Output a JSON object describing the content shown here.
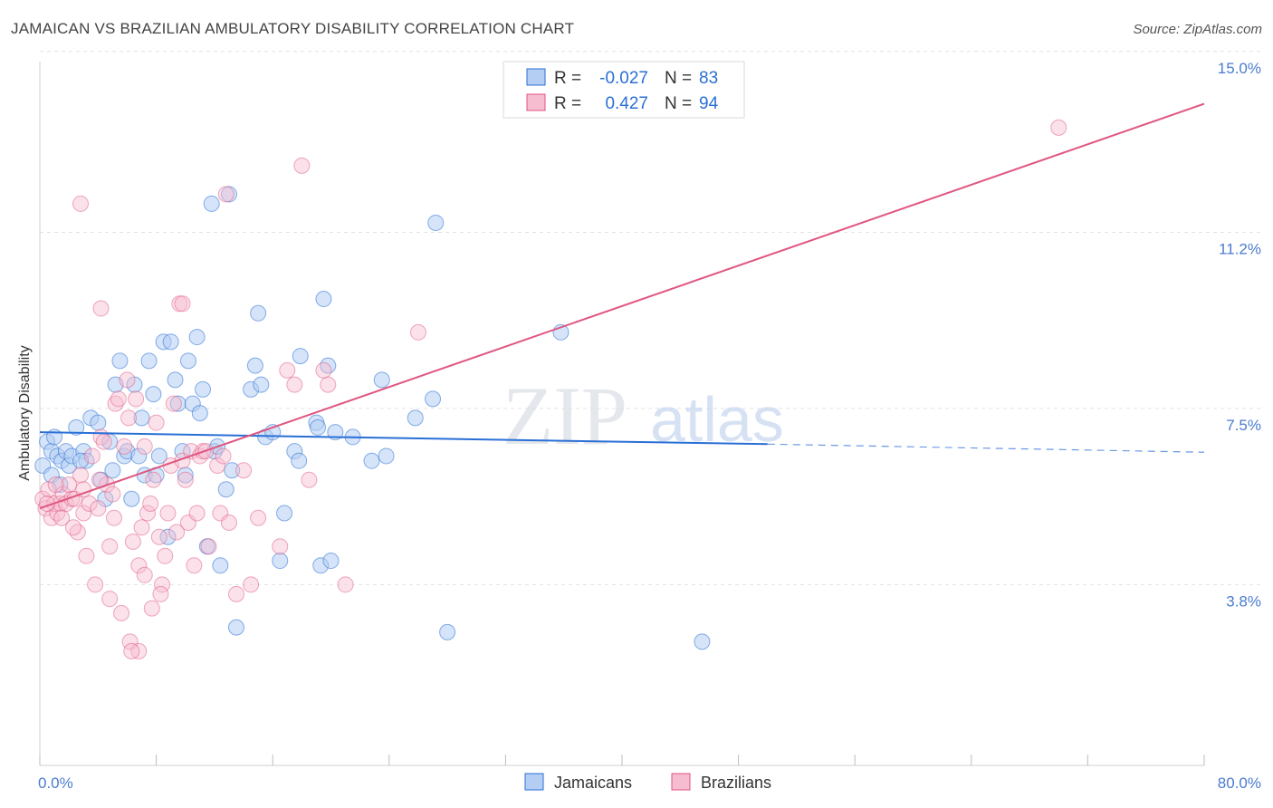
{
  "header": {
    "title": "JAMAICAN VS BRAZILIAN AMBULATORY DISABILITY CORRELATION CHART",
    "source": "Source: ZipAtlas.com"
  },
  "watermark": {
    "zip": "ZIP",
    "atlas": "atlas"
  },
  "colors": {
    "jamaicans": "#2a6fd6",
    "jamaicans_fill": "#b3cdf3",
    "brazilians": "#e0567f",
    "brazilians_fill": "#f6bcd0",
    "tick": "#4a7bd0"
  },
  "legend": {
    "jamaicans": {
      "r_label": "R = ",
      "r_value": "-0.027",
      "n_label": "N = ",
      "n_value": "83"
    },
    "brazilians": {
      "r_label": "R = ",
      "r_value": "0.427",
      "n_label": "N = ",
      "n_value": "94"
    }
  },
  "bottom_legend": {
    "jamaicans": "Jamaicans",
    "brazilians": "Brazilians"
  },
  "chart_data": {
    "type": "scatter",
    "title": "JAMAICAN VS BRAZILIAN AMBULATORY DISABILITY CORRELATION CHART",
    "xlabel": "",
    "ylabel": "Ambulatory Disability",
    "xlim": [
      0,
      80
    ],
    "ylim": [
      0,
      15.7
    ],
    "x_tick_labels": [
      "0.0%",
      "80.0%"
    ],
    "y_ticks": [
      3.8,
      7.5,
      11.2,
      15.0
    ],
    "y_tick_labels": [
      "3.8%",
      "7.5%",
      "11.2%",
      "15.0%"
    ],
    "series": [
      {
        "name": "Jamaicans",
        "r": -0.027,
        "n": 83,
        "trend": {
          "x_start": 0,
          "y_start": 7.0,
          "x_end": 50,
          "y_end": 6.75,
          "dashed_x_end": 80,
          "dashed_y_end": 6.58
        },
        "points": [
          [
            0.2,
            6.3
          ],
          [
            0.5,
            6.8
          ],
          [
            0.8,
            6.6
          ],
          [
            1.0,
            6.9
          ],
          [
            1.2,
            6.5
          ],
          [
            1.5,
            6.4
          ],
          [
            1.8,
            6.6
          ],
          [
            2.0,
            6.3
          ],
          [
            2.2,
            6.5
          ],
          [
            2.5,
            7.1
          ],
          [
            3.0,
            6.6
          ],
          [
            3.2,
            6.4
          ],
          [
            3.5,
            7.3
          ],
          [
            4.0,
            7.2
          ],
          [
            4.2,
            6.0
          ],
          [
            4.5,
            5.6
          ],
          [
            4.8,
            6.8
          ],
          [
            5.0,
            6.2
          ],
          [
            5.2,
            8.0
          ],
          [
            5.5,
            8.5
          ],
          [
            5.8,
            6.5
          ],
          [
            6.0,
            6.6
          ],
          [
            6.3,
            5.6
          ],
          [
            6.5,
            8.0
          ],
          [
            6.8,
            6.5
          ],
          [
            7.0,
            7.3
          ],
          [
            7.2,
            6.1
          ],
          [
            7.5,
            8.5
          ],
          [
            7.8,
            7.8
          ],
          [
            8.0,
            6.1
          ],
          [
            8.2,
            6.5
          ],
          [
            8.5,
            8.9
          ],
          [
            8.8,
            4.8
          ],
          [
            9.0,
            8.9
          ],
          [
            9.3,
            8.1
          ],
          [
            9.5,
            7.6
          ],
          [
            9.8,
            6.6
          ],
          [
            10.0,
            6.1
          ],
          [
            10.2,
            8.5
          ],
          [
            10.5,
            7.6
          ],
          [
            10.8,
            9.0
          ],
          [
            11.0,
            7.4
          ],
          [
            11.2,
            7.9
          ],
          [
            11.5,
            4.6
          ],
          [
            11.8,
            11.8
          ],
          [
            12.0,
            6.6
          ],
          [
            12.2,
            6.7
          ],
          [
            12.4,
            4.2
          ],
          [
            12.8,
            5.8
          ],
          [
            13.2,
            6.2
          ],
          [
            13.0,
            12.0
          ],
          [
            13.5,
            2.9
          ],
          [
            14.5,
            7.9
          ],
          [
            14.8,
            8.4
          ],
          [
            15.0,
            9.5
          ],
          [
            15.2,
            8.0
          ],
          [
            15.5,
            6.9
          ],
          [
            16.0,
            7.0
          ],
          [
            16.5,
            4.3
          ],
          [
            16.8,
            5.3
          ],
          [
            17.5,
            6.6
          ],
          [
            17.8,
            6.4
          ],
          [
            17.9,
            8.6
          ],
          [
            19.0,
            7.2
          ],
          [
            19.1,
            7.1
          ],
          [
            19.3,
            4.2
          ],
          [
            19.5,
            9.8
          ],
          [
            19.8,
            8.4
          ],
          [
            20.0,
            4.3
          ],
          [
            20.3,
            7.0
          ],
          [
            21.5,
            6.9
          ],
          [
            22.8,
            6.4
          ],
          [
            23.5,
            8.1
          ],
          [
            23.8,
            6.5
          ],
          [
            25.8,
            7.3
          ],
          [
            27.0,
            7.7
          ],
          [
            27.2,
            11.4
          ],
          [
            28.0,
            2.8
          ],
          [
            35.8,
            9.1
          ],
          [
            45.5,
            2.6
          ],
          [
            0.8,
            6.1
          ],
          [
            1.4,
            5.9
          ],
          [
            2.8,
            6.4
          ]
        ]
      },
      {
        "name": "Brazilians",
        "r": 0.427,
        "n": 94,
        "trend": {
          "x_start": 0,
          "y_start": 5.4,
          "x_end": 80,
          "y_end": 13.9
        },
        "points": [
          [
            0.2,
            5.6
          ],
          [
            0.4,
            5.4
          ],
          [
            0.6,
            5.8
          ],
          [
            0.8,
            5.2
          ],
          [
            1.0,
            5.5
          ],
          [
            1.2,
            5.3
          ],
          [
            1.4,
            5.5
          ],
          [
            1.6,
            5.7
          ],
          [
            1.8,
            5.5
          ],
          [
            2.0,
            5.9
          ],
          [
            2.2,
            5.6
          ],
          [
            2.4,
            5.6
          ],
          [
            2.6,
            4.9
          ],
          [
            2.8,
            6.1
          ],
          [
            3.0,
            5.3
          ],
          [
            3.2,
            4.4
          ],
          [
            3.4,
            5.5
          ],
          [
            3.6,
            6.5
          ],
          [
            3.8,
            3.8
          ],
          [
            4.0,
            5.4
          ],
          [
            4.2,
            6.9
          ],
          [
            4.4,
            6.8
          ],
          [
            4.6,
            5.9
          ],
          [
            4.8,
            4.6
          ],
          [
            5.0,
            5.7
          ],
          [
            5.2,
            7.6
          ],
          [
            5.4,
            7.7
          ],
          [
            5.6,
            3.2
          ],
          [
            5.8,
            6.7
          ],
          [
            6.0,
            8.1
          ],
          [
            6.2,
            2.6
          ],
          [
            6.4,
            4.7
          ],
          [
            6.6,
            7.7
          ],
          [
            6.8,
            4.2
          ],
          [
            7.0,
            5.0
          ],
          [
            7.2,
            6.7
          ],
          [
            7.4,
            5.3
          ],
          [
            7.6,
            5.5
          ],
          [
            7.8,
            6.0
          ],
          [
            8.0,
            7.2
          ],
          [
            8.2,
            4.8
          ],
          [
            8.4,
            3.8
          ],
          [
            8.6,
            4.4
          ],
          [
            8.8,
            5.3
          ],
          [
            9.0,
            6.3
          ],
          [
            9.2,
            7.6
          ],
          [
            9.4,
            4.9
          ],
          [
            9.6,
            9.7
          ],
          [
            9.8,
            6.4
          ],
          [
            10.0,
            6.0
          ],
          [
            10.2,
            5.1
          ],
          [
            10.4,
            6.6
          ],
          [
            10.6,
            4.2
          ],
          [
            10.8,
            5.3
          ],
          [
            11.0,
            6.5
          ],
          [
            11.2,
            6.6
          ],
          [
            11.4,
            6.6
          ],
          [
            11.6,
            4.6
          ],
          [
            12.2,
            6.3
          ],
          [
            12.4,
            5.3
          ],
          [
            12.6,
            6.5
          ],
          [
            12.8,
            12.0
          ],
          [
            13.0,
            5.1
          ],
          [
            13.5,
            3.6
          ],
          [
            14.0,
            6.2
          ],
          [
            14.5,
            3.8
          ],
          [
            15.0,
            5.2
          ],
          [
            16.5,
            4.6
          ],
          [
            17.0,
            8.3
          ],
          [
            17.5,
            8.0
          ],
          [
            18.0,
            12.6
          ],
          [
            18.5,
            6.0
          ],
          [
            19.8,
            8.0
          ],
          [
            19.5,
            8.3
          ],
          [
            21.0,
            3.8
          ],
          [
            26.0,
            9.1
          ],
          [
            70.0,
            13.4
          ],
          [
            2.8,
            11.8
          ],
          [
            4.2,
            9.6
          ],
          [
            7.2,
            4.0
          ],
          [
            9.8,
            9.7
          ],
          [
            4.8,
            3.5
          ],
          [
            6.8,
            2.4
          ],
          [
            6.3,
            2.4
          ],
          [
            8.3,
            3.6
          ],
          [
            0.5,
            5.5
          ],
          [
            1.1,
            5.9
          ],
          [
            1.5,
            5.2
          ],
          [
            2.3,
            5.0
          ],
          [
            3.0,
            5.8
          ],
          [
            4.1,
            6.0
          ],
          [
            5.1,
            5.2
          ],
          [
            6.1,
            7.3
          ],
          [
            7.7,
            3.3
          ]
        ]
      }
    ]
  }
}
